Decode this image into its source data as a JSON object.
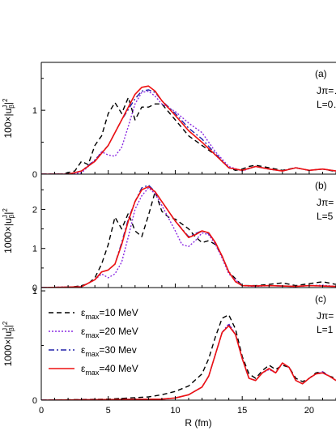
{
  "chart_data": [
    {
      "type": "line",
      "panel_label": "(a)",
      "annotation_lines": [
        "Jπ=…",
        "L=0…"
      ],
      "ylabel": "100×|u",
      "ylabel_sup": "J",
      "ylabel_sub": "β",
      "ylabel_end": "|",
      "ylabel_pow": "2",
      "ylim": [
        0,
        1.75
      ],
      "yticks": [
        0,
        1
      ],
      "xlim": [
        0,
        22
      ],
      "series": [
        {
          "key": "s10",
          "x": [
            0,
            1.5,
            2.5,
            3,
            3.5,
            4,
            4.5,
            5,
            5.5,
            6,
            6.5,
            7,
            7.5,
            8,
            8.5,
            9,
            10,
            11,
            12,
            13,
            14,
            14.5,
            15,
            15.5,
            16,
            17,
            18,
            19,
            20,
            21,
            22
          ],
          "y": [
            0,
            0,
            0.05,
            0.2,
            0.15,
            0.45,
            0.6,
            0.95,
            1.12,
            0.95,
            1.2,
            0.85,
            1.05,
            1.05,
            1.1,
            1.1,
            0.85,
            0.6,
            0.45,
            0.3,
            0.1,
            0.06,
            0.08,
            0.12,
            0.14,
            0.1,
            0.06,
            0.1,
            0.06,
            0.08,
            0.04
          ]
        },
        {
          "key": "s20",
          "x": [
            0,
            2,
            3,
            4,
            4.5,
            5,
            5.5,
            6,
            6.5,
            7,
            7.5,
            8,
            8.5,
            9,
            10,
            11,
            12,
            13,
            14,
            15,
            16,
            17,
            18,
            19,
            20,
            21,
            22
          ],
          "y": [
            0,
            0,
            0.02,
            0.22,
            0.35,
            0.3,
            0.28,
            0.42,
            0.75,
            1.1,
            1.28,
            1.3,
            1.22,
            1.1,
            0.98,
            0.8,
            0.65,
            0.35,
            0.12,
            0.05,
            0.12,
            0.08,
            0.05,
            0.1,
            0.06,
            0.08,
            0.05
          ]
        },
        {
          "key": "s30",
          "x": [
            0,
            2,
            3,
            4,
            5,
            6,
            7,
            7.5,
            8,
            8.5,
            9,
            10,
            11,
            12,
            13,
            14,
            15,
            16,
            17,
            18,
            19,
            20,
            21,
            22
          ],
          "y": [
            0,
            0,
            0.05,
            0.22,
            0.45,
            0.85,
            1.18,
            1.3,
            1.32,
            1.28,
            1.15,
            0.95,
            0.72,
            0.55,
            0.32,
            0.1,
            0.06,
            0.12,
            0.08,
            0.05,
            0.1,
            0.06,
            0.08,
            0.05
          ]
        },
        {
          "key": "s40",
          "x": [
            0,
            2,
            3,
            4,
            5,
            6,
            7,
            7.5,
            8,
            8.5,
            9,
            10,
            11,
            12,
            13,
            14,
            15,
            16,
            17,
            18,
            19,
            20,
            21,
            22
          ],
          "y": [
            0,
            0,
            0.05,
            0.2,
            0.45,
            0.85,
            1.25,
            1.36,
            1.38,
            1.3,
            1.15,
            0.92,
            0.68,
            0.5,
            0.3,
            0.1,
            0.06,
            0.12,
            0.08,
            0.05,
            0.1,
            0.06,
            0.08,
            0.05
          ]
        }
      ]
    },
    {
      "type": "line",
      "panel_label": "(b)",
      "annotation_lines": [
        "Jπ=",
        "L=5"
      ],
      "ylabel": "1000×|u",
      "ylabel_sup": "J",
      "ylabel_sub": "β",
      "ylabel_end": "|",
      "ylabel_pow": "2",
      "ylim": [
        0,
        2.9
      ],
      "yticks": [
        0,
        1,
        2
      ],
      "xlim": [
        0,
        22
      ],
      "series": [
        {
          "key": "s10",
          "x": [
            0,
            2,
            3,
            3.5,
            4,
            4.5,
            5,
            5.5,
            6,
            6.5,
            7,
            7.5,
            8,
            8.5,
            9,
            9.5,
            10,
            11,
            11.5,
            12,
            12.5,
            13,
            13.5,
            14,
            15,
            16,
            17,
            18,
            19,
            20,
            21,
            22
          ],
          "y": [
            0,
            0,
            0.05,
            0.1,
            0.25,
            0.6,
            1.1,
            1.8,
            1.5,
            1.9,
            1.45,
            1.3,
            1.85,
            2.45,
            1.95,
            1.8,
            1.75,
            1.5,
            1.3,
            1.15,
            1.2,
            1.1,
            0.8,
            0.4,
            0.05,
            0.05,
            0.08,
            0.12,
            0.05,
            0.1,
            0.15,
            0.08
          ]
        },
        {
          "key": "s20",
          "x": [
            0,
            3,
            4,
            4.5,
            5,
            5.5,
            6,
            6.5,
            7,
            7.5,
            8,
            8.5,
            9,
            10,
            10.5,
            11,
            11.5,
            12,
            12.5,
            13,
            13.5,
            14,
            15,
            16,
            17,
            18,
            19,
            20,
            21,
            22
          ],
          "y": [
            0,
            0.02,
            0.2,
            0.35,
            0.25,
            0.35,
            0.65,
            1.3,
            2.0,
            2.35,
            2.55,
            2.4,
            2.1,
            1.45,
            1.1,
            1.05,
            1.2,
            1.4,
            1.35,
            1.1,
            0.75,
            0.35,
            0.05,
            0.03,
            0.05,
            0.04,
            0.03,
            0.05,
            0.06,
            0.03
          ]
        },
        {
          "key": "s30",
          "x": [
            0,
            3,
            4,
            4.5,
            5,
            5.5,
            6,
            6.5,
            7,
            7.5,
            8,
            8.5,
            9,
            10,
            11,
            11.5,
            12,
            12.5,
            13,
            13.5,
            14,
            14.5,
            15,
            16,
            17,
            18,
            19,
            20,
            21,
            22
          ],
          "y": [
            0,
            0.02,
            0.2,
            0.4,
            0.45,
            0.6,
            1.15,
            1.75,
            2.2,
            2.55,
            2.62,
            2.45,
            2.2,
            1.7,
            1.3,
            1.38,
            1.45,
            1.38,
            1.15,
            0.8,
            0.4,
            0.15,
            0.05,
            0.04,
            0.05,
            0.04,
            0.03,
            0.05,
            0.04,
            0.03
          ]
        },
        {
          "key": "s40",
          "x": [
            0,
            3,
            4,
            4.5,
            5,
            5.5,
            6,
            6.5,
            7,
            7.5,
            8,
            8.5,
            9,
            10,
            11,
            11.5,
            12,
            12.5,
            13,
            13.5,
            14,
            14.5,
            15,
            16,
            17,
            18,
            19,
            20,
            21,
            22
          ],
          "y": [
            0,
            0.02,
            0.2,
            0.4,
            0.45,
            0.6,
            1.1,
            1.7,
            2.2,
            2.5,
            2.58,
            2.45,
            2.2,
            1.7,
            1.28,
            1.35,
            1.45,
            1.4,
            1.15,
            0.8,
            0.4,
            0.15,
            0.05,
            0.04,
            0.05,
            0.04,
            0.03,
            0.05,
            0.04,
            0.03
          ]
        }
      ]
    },
    {
      "type": "line",
      "panel_label": "(c)",
      "annotation_lines": [
        "Jπ=",
        "L=1"
      ],
      "ylabel": "1000×|u",
      "ylabel_sup": "J",
      "ylabel_sub": "β",
      "ylabel_end": "|",
      "ylabel_pow": "2",
      "ylim": [
        0,
        1.03
      ],
      "yticks": [
        0,
        1
      ],
      "xlim": [
        0,
        22
      ],
      "xticks": [
        0,
        5,
        10,
        15,
        20
      ],
      "xlabel": "R (fm)",
      "legend_position": "left",
      "series": [
        {
          "key": "s10",
          "x": [
            0,
            5,
            8,
            9,
            10,
            11,
            12,
            12.5,
            13,
            13.5,
            14,
            14.5,
            15,
            15.5,
            16,
            16.5,
            17,
            17.5,
            18,
            18.5,
            19,
            19.5,
            20,
            20.5,
            21,
            21.5,
            22
          ],
          "y": [
            0,
            0.01,
            0.03,
            0.05,
            0.08,
            0.13,
            0.24,
            0.38,
            0.58,
            0.75,
            0.78,
            0.65,
            0.4,
            0.24,
            0.2,
            0.27,
            0.32,
            0.28,
            0.32,
            0.3,
            0.2,
            0.17,
            0.2,
            0.25,
            0.26,
            0.22,
            0.2
          ]
        },
        {
          "key": "s20",
          "x": [
            0,
            5,
            9,
            10,
            11,
            12,
            12.5,
            13,
            13.5,
            14,
            14.5,
            15,
            15.5,
            16,
            16.5,
            17,
            17.5,
            18,
            18.5,
            19,
            19.5,
            20,
            20.5,
            21,
            21.5,
            22
          ],
          "y": [
            0,
            0.005,
            0.01,
            0.02,
            0.05,
            0.12,
            0.22,
            0.42,
            0.62,
            0.7,
            0.6,
            0.38,
            0.2,
            0.18,
            0.25,
            0.28,
            0.25,
            0.34,
            0.3,
            0.18,
            0.15,
            0.2,
            0.24,
            0.26,
            0.22,
            0.18
          ]
        },
        {
          "key": "s30",
          "x": [
            0,
            5,
            9,
            10,
            11,
            12,
            12.5,
            13,
            13.5,
            14,
            14.5,
            15,
            15.5,
            16,
            16.5,
            17,
            17.5,
            18,
            18.5,
            19,
            19.5,
            20,
            20.5,
            21,
            21.5,
            22
          ],
          "y": [
            0,
            0.005,
            0.01,
            0.02,
            0.05,
            0.12,
            0.22,
            0.42,
            0.62,
            0.69,
            0.6,
            0.38,
            0.2,
            0.18,
            0.25,
            0.29,
            0.25,
            0.34,
            0.3,
            0.18,
            0.15,
            0.2,
            0.24,
            0.25,
            0.22,
            0.18
          ]
        },
        {
          "key": "s40",
          "x": [
            0,
            5,
            9,
            10,
            11,
            12,
            12.5,
            13,
            13.5,
            14,
            14.5,
            15,
            15.5,
            16,
            16.5,
            17,
            17.5,
            18,
            18.5,
            19,
            19.5,
            20,
            20.5,
            21,
            21.5,
            22
          ],
          "y": [
            0,
            0.005,
            0.01,
            0.02,
            0.05,
            0.12,
            0.22,
            0.42,
            0.62,
            0.68,
            0.6,
            0.38,
            0.2,
            0.18,
            0.25,
            0.29,
            0.25,
            0.34,
            0.3,
            0.18,
            0.15,
            0.2,
            0.24,
            0.25,
            0.22,
            0.18
          ]
        }
      ]
    }
  ],
  "legend": [
    {
      "key": "s10",
      "prefix": "ε",
      "sub": "max",
      "text": "=10 MeV",
      "color": "#000000",
      "style": "dashed"
    },
    {
      "key": "s20",
      "prefix": "ε",
      "sub": "max",
      "text": "=20 MeV",
      "color": "#8b2be2",
      "style": "dotted"
    },
    {
      "key": "s30",
      "prefix": "ε",
      "sub": "max",
      "text": "=30 Mev",
      "color": "#2222aa",
      "style": "dashdot"
    },
    {
      "key": "s40",
      "prefix": "ε",
      "sub": "max",
      "text": "=40 MeV",
      "color": "#ee1111",
      "style": "solid"
    }
  ]
}
